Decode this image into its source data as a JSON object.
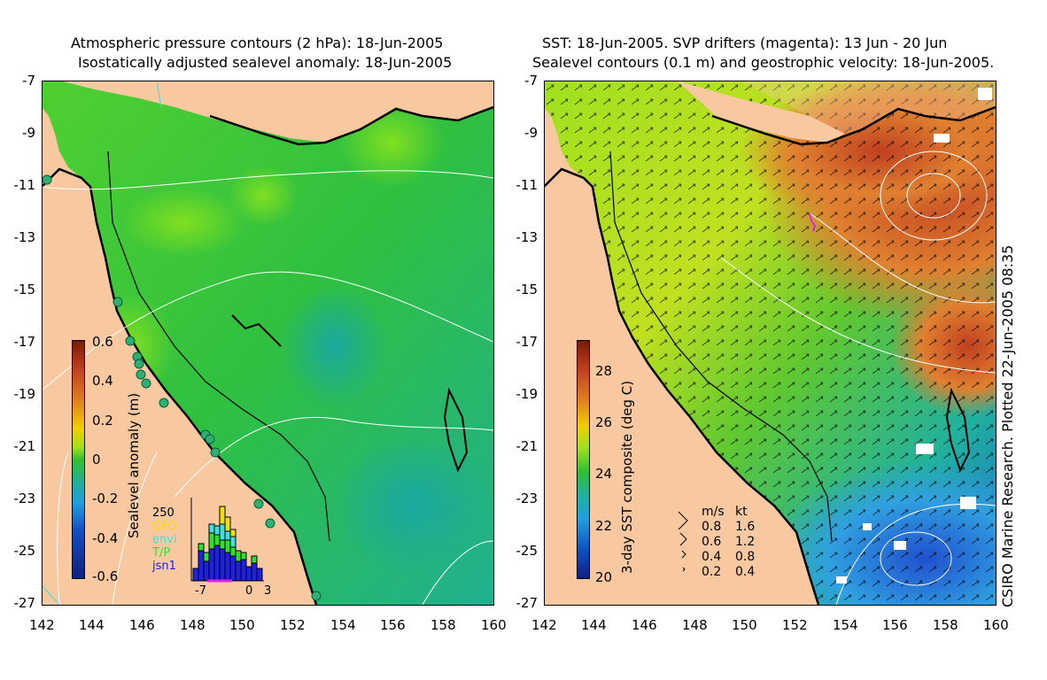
{
  "left_panel": {
    "title_line1": "Atmospheric pressure contours (2 hPa): 18-Jun-2005",
    "title_line2": "Isostatically adjusted sealevel anomaly: 18-Jun-2005",
    "colorbar_label": "Sealevel anomaly (m)",
    "colorbar_ticks": [
      "0.6",
      "0.4",
      "0.2",
      "0",
      "-0.2",
      "-0.4",
      "-0.6"
    ],
    "inset": {
      "ymax_label": "250",
      "legend": [
        {
          "label": "GFO",
          "color": "#f0e000"
        },
        {
          "label": "envi",
          "color": "#40e0e0"
        },
        {
          "label": "T/P",
          "color": "#30e030"
        },
        {
          "label": "jsn1",
          "color": "#2020e0"
        }
      ],
      "x_ticks": [
        "-7",
        "0",
        "3"
      ]
    }
  },
  "right_panel": {
    "title_line1": "SST: 18-Jun-2005. SVP drifters (magenta): 13 Jun - 20 Jun",
    "title_line2": "Sealevel contours (0.1 m) and geostrophic velocity: 18-Jun-2005.",
    "colorbar_label": "3-day SST composite (deg C)",
    "colorbar_ticks": [
      "28",
      "26",
      "24",
      "22",
      "20"
    ],
    "velocity_legend": {
      "header_ms": "m/s",
      "header_kt": "kt",
      "rows": [
        {
          "ms": "0.8",
          "kt": "1.6"
        },
        {
          "ms": "0.6",
          "kt": "1.2"
        },
        {
          "ms": "0.4",
          "kt": "0.8"
        },
        {
          "ms": "0.2",
          "kt": "0.4"
        }
      ]
    }
  },
  "y_axis_ticks": [
    "-7",
    "-9",
    "-11",
    "-13",
    "-15",
    "-17",
    "-19",
    "-21",
    "-23",
    "-25",
    "-27"
  ],
  "x_axis_ticks": [
    "142",
    "144",
    "146",
    "148",
    "150",
    "152",
    "154",
    "156",
    "158",
    "160"
  ],
  "side_caption": "CSIRO Marine Research. Plotted 22-Jun-2005 08:35",
  "colors": {
    "land": "#f8c8a0",
    "ocean_green": "#30c830",
    "sst_warm": "#c05020",
    "sst_cool": "#2080e0"
  }
}
